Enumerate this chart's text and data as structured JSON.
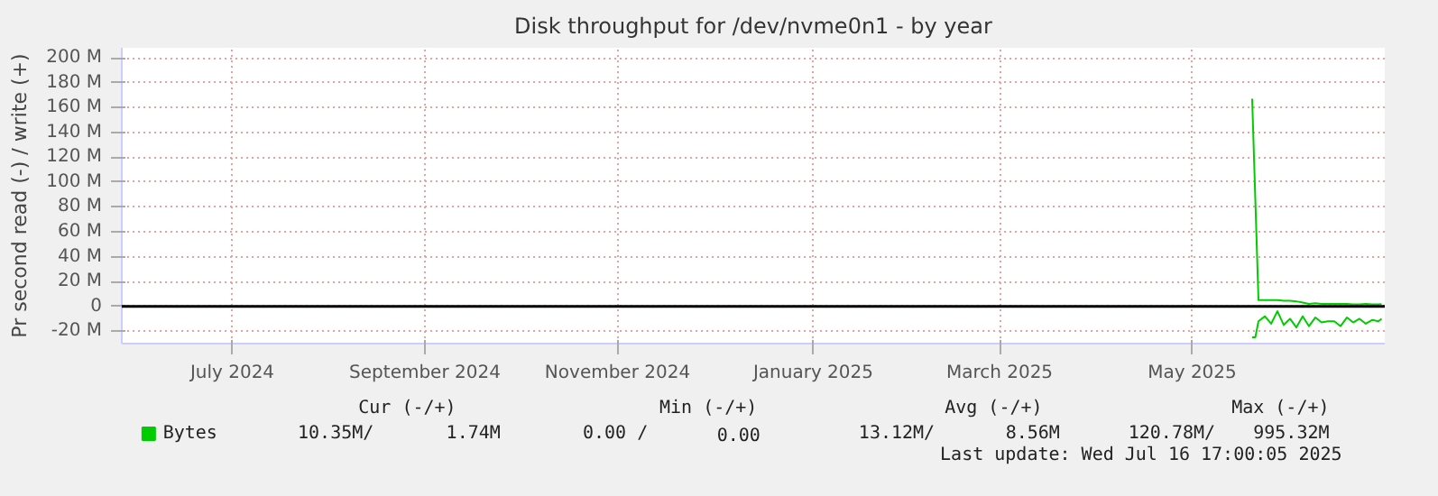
{
  "chart_data": {
    "type": "line",
    "title": "Disk throughput for /dev/nvme0n1 - by year",
    "ylabel": "Pr second read (-) / write (+)",
    "xlim": [
      "2024-06-11",
      "2025-07-16"
    ],
    "xticks": [
      {
        "value": "2024-07-16",
        "label": "July 2024"
      },
      {
        "value": "2024-09-15",
        "label": "September 2024"
      },
      {
        "value": "2024-11-15",
        "label": "November 2024"
      },
      {
        "value": "2025-01-16",
        "label": "January 2025"
      },
      {
        "value": "2025-03-16",
        "label": "March 2025"
      },
      {
        "value": "2025-05-16",
        "label": "May 2025"
      }
    ],
    "ylim": [
      -30,
      208
    ],
    "yticks": [
      {
        "value": -20,
        "label": "-20 M"
      },
      0,
      {
        "value": 20,
        "label": "20 M"
      },
      {
        "value": 40,
        "label": "40 M"
      },
      {
        "value": 60,
        "label": "60 M"
      },
      {
        "value": 80,
        "label": "80 M"
      },
      {
        "value": 100,
        "label": "100 M"
      },
      {
        "value": 120,
        "label": "120 M"
      },
      {
        "value": 140,
        "label": "140 M"
      },
      {
        "value": 160,
        "label": "160 M"
      },
      {
        "value": 180,
        "label": "180 M"
      },
      {
        "value": 200,
        "label": "200 M"
      }
    ],
    "grid": true,
    "legend": "bottom left",
    "ref_lines": [
      {
        "axis": "y",
        "value": 0,
        "label": null,
        "color": "#000000"
      }
    ],
    "series": [
      {
        "name": "Bytes",
        "color": "#00cc00",
        "x": [
          "2025-06-04",
          "2025-06-06",
          "2025-06-08",
          "2025-06-10",
          "2025-06-12",
          "2025-06-14",
          "2025-06-16",
          "2025-06-18",
          "2025-06-20",
          "2025-06-22",
          "2025-06-24",
          "2025-06-26",
          "2025-06-28",
          "2025-06-30",
          "2025-07-02",
          "2025-07-04",
          "2025-07-06",
          "2025-07-08",
          "2025-07-10",
          "2025-07-12",
          "2025-07-14",
          "2025-07-15"
        ],
        "values": [
          167,
          5,
          5,
          5,
          5,
          4.5,
          4.5,
          4,
          3,
          2,
          2.5,
          2,
          2,
          2,
          2,
          2,
          1.5,
          1.5,
          2,
          1.5,
          1.5,
          1.7
        ]
      },
      {
        "color": "#00cc00",
        "x": [
          "2025-06-04",
          "2025-06-05",
          "2025-06-06",
          "2025-06-08",
          "2025-06-10",
          "2025-06-12",
          "2025-06-14",
          "2025-06-16",
          "2025-06-18",
          "2025-06-20",
          "2025-06-22",
          "2025-06-24",
          "2025-06-26",
          "2025-06-28",
          "2025-06-30",
          "2025-07-02",
          "2025-07-04",
          "2025-07-06",
          "2025-07-08",
          "2025-07-10",
          "2025-07-12",
          "2025-07-14",
          "2025-07-15"
        ],
        "values": [
          -25,
          -25,
          -12,
          -8,
          -14,
          -4,
          -15,
          -10,
          -17,
          -8,
          -16,
          -9,
          -13,
          -12,
          -12,
          -16,
          -9,
          -13,
          -10,
          -14,
          -11,
          -12,
          -10
        ]
      }
    ],
    "annotations": [
      "Cur (-/+)",
      "Min (-/+)",
      "Avg (-/+)",
      "Max (-/+)",
      "10.35M/",
      "1.74M",
      "0.00 /",
      "0.00",
      "13.12M/",
      "8.56M",
      "120.78M/",
      "995.32M",
      "Last update: Wed Jul 16 17:00:05 2025"
    ]
  }
}
